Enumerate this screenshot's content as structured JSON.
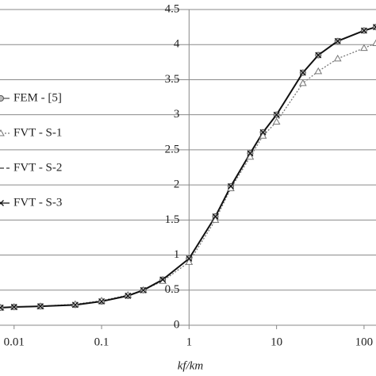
{
  "chart_data": {
    "type": "line",
    "x_label": "kf/km",
    "xlog": true,
    "grid": true,
    "xlim": [
      0.0069,
      137
    ],
    "xticks": [
      0.01,
      0.1,
      1,
      10,
      100
    ],
    "ylim": [
      0,
      4.5
    ],
    "yticks": [
      0,
      0.5,
      1,
      1.5,
      2,
      2.5,
      3,
      3.5,
      4,
      4.5
    ],
    "x": [
      0.007,
      0.01,
      0.02,
      0.05,
      0.1,
      0.2,
      0.3,
      0.5,
      1,
      2,
      3,
      5,
      7,
      10,
      20,
      30,
      50,
      100,
      137
    ],
    "series": [
      {
        "name": "FEM - [5]",
        "color": "#555555",
        "marker": "circle",
        "dash": "none",
        "values": [
          0.25,
          0.26,
          0.27,
          0.29,
          0.34,
          0.42,
          0.5,
          0.65,
          0.95,
          1.55,
          1.98,
          2.45,
          2.75,
          3.0,
          3.6,
          3.85,
          4.05,
          4.2,
          4.25
        ]
      },
      {
        "name": "FVT - S-1",
        "color": "#777777",
        "marker": "triangle",
        "dash": "2,2",
        "values": [
          0.25,
          0.26,
          0.27,
          0.3,
          0.35,
          0.43,
          0.5,
          0.63,
          0.9,
          1.5,
          1.95,
          2.4,
          2.7,
          2.9,
          3.45,
          3.62,
          3.8,
          3.95,
          4.02
        ]
      },
      {
        "name": "FVT - S-2",
        "color": "#333333",
        "marker": "none",
        "dash": "6,3",
        "values": [
          0.25,
          0.26,
          0.27,
          0.29,
          0.34,
          0.42,
          0.5,
          0.65,
          0.95,
          1.55,
          1.98,
          2.45,
          2.75,
          3.0,
          3.6,
          3.85,
          4.05,
          4.2,
          4.25
        ]
      },
      {
        "name": "FVT - S-3",
        "color": "#111111",
        "marker": "x",
        "dash": "none",
        "values": [
          0.25,
          0.26,
          0.27,
          0.29,
          0.34,
          0.42,
          0.5,
          0.65,
          0.95,
          1.55,
          1.98,
          2.45,
          2.75,
          3.0,
          3.6,
          3.85,
          4.05,
          4.2,
          4.25
        ]
      }
    ]
  }
}
